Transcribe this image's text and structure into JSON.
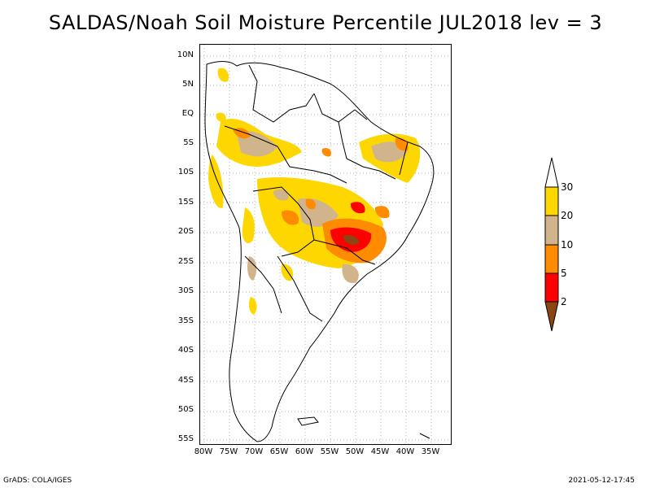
{
  "title": "SALDAS/Noah Soil Moisture Percentile JUL2018 lev = 3",
  "lat_labels": [
    "10N",
    "5N",
    "EQ",
    "5S",
    "10S",
    "15S",
    "20S",
    "25S",
    "30S",
    "35S",
    "40S",
    "45S",
    "50S",
    "55S"
  ],
  "lon_labels": [
    "80W",
    "75W",
    "70W",
    "65W",
    "60W",
    "55W",
    "50W",
    "45W",
    "40W",
    "35W"
  ],
  "colorbar": {
    "labels": [
      "2",
      "5",
      "10",
      "20",
      "30"
    ],
    "colors": {
      "below_2": "#8b4513",
      "2_5": "#ff0000",
      "5_10": "#ff8c00",
      "10_20": "#d2b48c",
      "20_30": "#ffd700",
      "above_30": "#ffffff"
    }
  },
  "footer": {
    "left": "GrADS: COLA/IGES",
    "right": "2021-05-12-17:45"
  }
}
